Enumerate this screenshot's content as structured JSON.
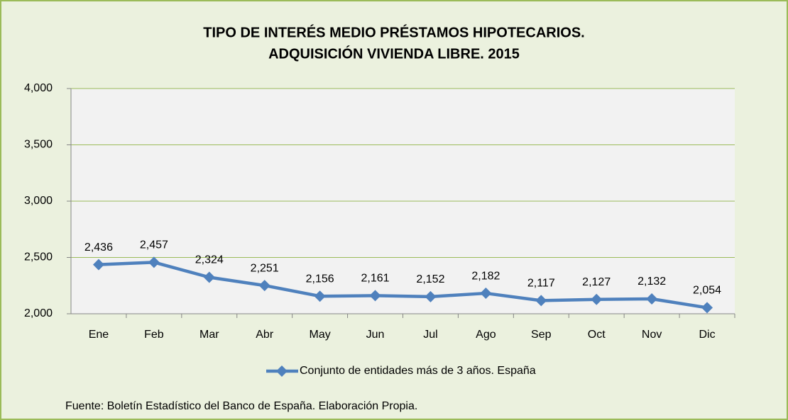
{
  "chart_data": {
    "type": "line",
    "title": [
      "TIPO DE INTERÉS MEDIO PRÉSTAMOS HIPOTECARIOS.",
      "ADQUISICIÓN VIVIENDA LIBRE. 2015"
    ],
    "categories": [
      "Ene",
      "Feb",
      "Mar",
      "Abr",
      "May",
      "Jun",
      "Jul",
      "Ago",
      "Sep",
      "Oct",
      "Nov",
      "Dic"
    ],
    "series": [
      {
        "name": "Conjunto de entidades más de 3 años. España",
        "color": "#4f81bd",
        "values": [
          2.436,
          2.457,
          2.324,
          2.251,
          2.156,
          2.161,
          2.152,
          2.182,
          2.117,
          2.127,
          2.132,
          2.054
        ],
        "value_labels": [
          "2,436",
          "2,457",
          "2,324",
          "2,251",
          "2,156",
          "2,161",
          "2,152",
          "2,182",
          "2,117",
          "2,127",
          "2,132",
          "2,054"
        ]
      }
    ],
    "ylim": [
      2,
      4
    ],
    "yticks": [
      {
        "value": 2,
        "label": "2,000"
      },
      {
        "value": 2.5,
        "label": "2,500"
      },
      {
        "value": 3,
        "label": "3,000"
      },
      {
        "value": 3.5,
        "label": "3,500"
      },
      {
        "value": 4,
        "label": "4,000"
      }
    ],
    "grid": true,
    "legend": "bottom",
    "source": "Fuente: Boletín Estadístico del Banco de España. Elaboración Propia."
  }
}
